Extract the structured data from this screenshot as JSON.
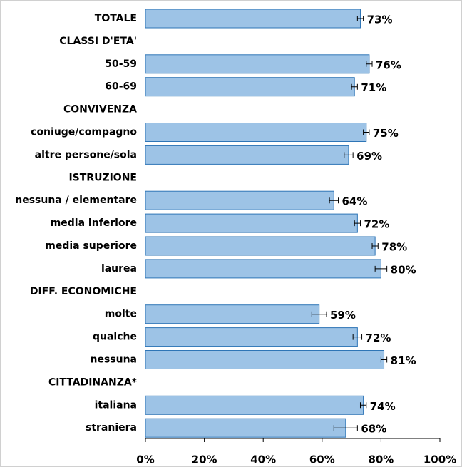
{
  "chart_data": {
    "type": "bar",
    "categories": [
      "TOTALE",
      "CLASSI D'ETA'",
      "50-59",
      "60-69",
      "CONVIVENZA",
      "coniuge/compagno",
      "altre persone/sola",
      "ISTRUZIONE",
      "nessuna / elementare",
      "media inferiore",
      "media superiore",
      "laurea",
      "DIFF. ECONOMICHE",
      "molte",
      "qualche",
      "nessuna",
      "CITTADINANZA*",
      "italiana",
      "straniera"
    ],
    "values": [
      73,
      null,
      76,
      71,
      null,
      75,
      69,
      null,
      64,
      72,
      78,
      80,
      null,
      59,
      72,
      81,
      null,
      74,
      68
    ],
    "value_labels": [
      "73%",
      null,
      "76%",
      "71%",
      null,
      "75%",
      "69%",
      null,
      "64%",
      "72%",
      "78%",
      "80%",
      null,
      "59%",
      "72%",
      "81%",
      null,
      "74%",
      "68%"
    ],
    "errors": [
      1,
      null,
      1,
      1,
      null,
      1,
      1.5,
      null,
      1.5,
      1,
      1,
      2,
      null,
      2.5,
      1.5,
      1,
      null,
      1,
      4
    ],
    "color": "#9dc3e6",
    "xlim": [
      0,
      100
    ],
    "xticks": [
      {
        "value": 0,
        "label": "0%"
      },
      {
        "value": 20,
        "label": "20%"
      },
      {
        "value": 40,
        "label": "40%"
      },
      {
        "value": 60,
        "label": "60%"
      },
      {
        "value": 80,
        "label": "80%"
      },
      {
        "value": 100,
        "label": "100%"
      }
    ]
  }
}
